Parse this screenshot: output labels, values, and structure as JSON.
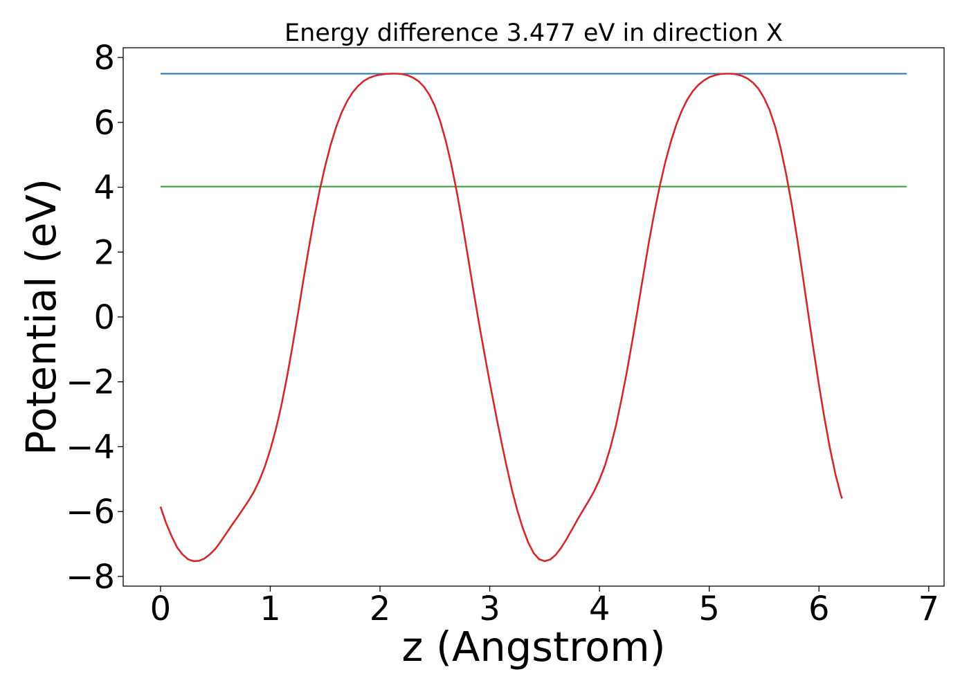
{
  "chart_data": {
    "type": "line",
    "title": "Energy difference 3.477 eV in direction X",
    "xlabel": "z (Angstrom)",
    "ylabel": "Potential (eV)",
    "xlim": [
      -0.34,
      7.14
    ],
    "ylim": [
      -8.3,
      8.3
    ],
    "x_ticks": [
      0,
      1,
      2,
      3,
      4,
      5,
      6,
      7
    ],
    "y_ticks": [
      -8,
      -6,
      -4,
      -2,
      0,
      2,
      4,
      6,
      8
    ],
    "x_tick_labels": [
      "0",
      "1",
      "2",
      "3",
      "4",
      "5",
      "6",
      "7"
    ],
    "y_tick_labels": [
      "−8",
      "−6",
      "−4",
      "−2",
      "0",
      "2",
      "4",
      "6",
      "8"
    ],
    "grid": false,
    "series": [
      {
        "role": "potential",
        "color": "#d62728",
        "points": [
          [
            0.0,
            -5.85
          ],
          [
            0.05,
            -6.35
          ],
          [
            0.1,
            -6.75
          ],
          [
            0.15,
            -7.1
          ],
          [
            0.2,
            -7.32
          ],
          [
            0.25,
            -7.47
          ],
          [
            0.3,
            -7.53
          ],
          [
            0.35,
            -7.52
          ],
          [
            0.4,
            -7.45
          ],
          [
            0.45,
            -7.32
          ],
          [
            0.5,
            -7.15
          ],
          [
            0.55,
            -6.92
          ],
          [
            0.6,
            -6.67
          ],
          [
            0.65,
            -6.42
          ],
          [
            0.7,
            -6.18
          ],
          [
            0.75,
            -5.93
          ],
          [
            0.8,
            -5.68
          ],
          [
            0.85,
            -5.4
          ],
          [
            0.9,
            -5.05
          ],
          [
            0.95,
            -4.62
          ],
          [
            1.0,
            -4.1
          ],
          [
            1.05,
            -3.48
          ],
          [
            1.1,
            -2.75
          ],
          [
            1.15,
            -1.9
          ],
          [
            1.2,
            -0.95
          ],
          [
            1.25,
            0.05
          ],
          [
            1.3,
            1.1
          ],
          [
            1.35,
            2.1
          ],
          [
            1.4,
            3.05
          ],
          [
            1.45,
            3.9
          ],
          [
            1.5,
            4.65
          ],
          [
            1.55,
            5.3
          ],
          [
            1.6,
            5.85
          ],
          [
            1.65,
            6.3
          ],
          [
            1.7,
            6.65
          ],
          [
            1.75,
            6.92
          ],
          [
            1.8,
            7.12
          ],
          [
            1.85,
            7.27
          ],
          [
            1.9,
            7.37
          ],
          [
            1.95,
            7.43
          ],
          [
            2.0,
            7.47
          ],
          [
            2.05,
            7.49
          ],
          [
            2.1,
            7.5
          ],
          [
            2.15,
            7.5
          ],
          [
            2.2,
            7.49
          ],
          [
            2.25,
            7.45
          ],
          [
            2.3,
            7.38
          ],
          [
            2.35,
            7.27
          ],
          [
            2.4,
            7.1
          ],
          [
            2.45,
            6.85
          ],
          [
            2.5,
            6.5
          ],
          [
            2.55,
            6.02
          ],
          [
            2.6,
            5.42
          ],
          [
            2.65,
            4.7
          ],
          [
            2.7,
            3.85
          ],
          [
            2.75,
            2.9
          ],
          [
            2.8,
            1.88
          ],
          [
            2.85,
            0.85
          ],
          [
            2.9,
            -0.15
          ],
          [
            2.95,
            -1.1
          ],
          [
            3.0,
            -2.02
          ],
          [
            3.05,
            -2.9
          ],
          [
            3.1,
            -3.75
          ],
          [
            3.15,
            -4.55
          ],
          [
            3.2,
            -5.3
          ],
          [
            3.25,
            -5.95
          ],
          [
            3.3,
            -6.5
          ],
          [
            3.35,
            -6.95
          ],
          [
            3.4,
            -7.28
          ],
          [
            3.45,
            -7.47
          ],
          [
            3.5,
            -7.53
          ],
          [
            3.55,
            -7.48
          ],
          [
            3.6,
            -7.34
          ],
          [
            3.65,
            -7.12
          ],
          [
            3.7,
            -6.85
          ],
          [
            3.75,
            -6.55
          ],
          [
            3.8,
            -6.25
          ],
          [
            3.85,
            -5.96
          ],
          [
            3.9,
            -5.68
          ],
          [
            3.95,
            -5.38
          ],
          [
            4.0,
            -5.02
          ],
          [
            4.05,
            -4.58
          ],
          [
            4.1,
            -4.02
          ],
          [
            4.15,
            -3.35
          ],
          [
            4.2,
            -2.55
          ],
          [
            4.25,
            -1.68
          ],
          [
            4.3,
            -0.72
          ],
          [
            4.35,
            0.28
          ],
          [
            4.4,
            1.3
          ],
          [
            4.45,
            2.3
          ],
          [
            4.5,
            3.22
          ],
          [
            4.55,
            4.05
          ],
          [
            4.6,
            4.78
          ],
          [
            4.65,
            5.4
          ],
          [
            4.7,
            5.93
          ],
          [
            4.75,
            6.36
          ],
          [
            4.8,
            6.7
          ],
          [
            4.85,
            6.96
          ],
          [
            4.9,
            7.15
          ],
          [
            4.95,
            7.29
          ],
          [
            5.0,
            7.39
          ],
          [
            5.05,
            7.45
          ],
          [
            5.1,
            7.49
          ],
          [
            5.15,
            7.5
          ],
          [
            5.2,
            7.5
          ],
          [
            5.25,
            7.48
          ],
          [
            5.3,
            7.43
          ],
          [
            5.35,
            7.35
          ],
          [
            5.4,
            7.22
          ],
          [
            5.45,
            7.03
          ],
          [
            5.5,
            6.75
          ],
          [
            5.55,
            6.38
          ],
          [
            5.6,
            5.88
          ],
          [
            5.65,
            5.22
          ],
          [
            5.7,
            4.42
          ],
          [
            5.75,
            3.5
          ],
          [
            5.8,
            2.45
          ],
          [
            5.85,
            1.32
          ],
          [
            5.9,
            0.15
          ],
          [
            5.95,
            -1.0
          ],
          [
            6.0,
            -2.1
          ],
          [
            6.05,
            -3.12
          ],
          [
            6.1,
            -4.05
          ],
          [
            6.15,
            -4.85
          ],
          [
            6.2,
            -5.5
          ],
          [
            6.21,
            -5.6
          ]
        ]
      },
      {
        "role": "maximum-level",
        "color": "#1f77b4",
        "points": [
          [
            0.0,
            7.5
          ],
          [
            6.8,
            7.5
          ]
        ]
      },
      {
        "role": "average-level",
        "color": "#2ca02c",
        "points": [
          [
            0.0,
            4.02
          ],
          [
            6.8,
            4.02
          ]
        ]
      }
    ]
  }
}
